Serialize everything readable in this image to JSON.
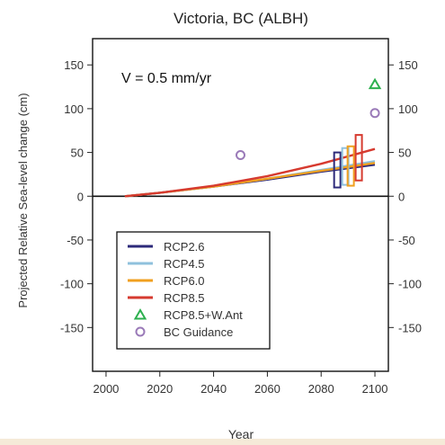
{
  "chart_data": {
    "type": "line",
    "title": "Victoria, BC (ALBH)",
    "xlabel": "Year",
    "ylabel": "Projected Relative Sea-level change (cm)",
    "annotation": "V = 0.5 mm/yr",
    "xlim": [
      1995,
      2105
    ],
    "ylim": [
      -200,
      180
    ],
    "xticks": [
      "2000",
      "2020",
      "2040",
      "2060",
      "2080",
      "2100"
    ],
    "xtick_values": [
      2000,
      2020,
      2040,
      2060,
      2080,
      2100
    ],
    "yticks": [
      "150",
      "100",
      "50",
      "0",
      "-50",
      "-100",
      "-150"
    ],
    "ytick_values": [
      150,
      100,
      50,
      0,
      -50,
      -100,
      -150
    ],
    "legend_position": "lower-left",
    "zero_line": true,
    "series": [
      {
        "name": "RCP2.6",
        "color": "#2d2a7a",
        "x": [
          2007,
          2020,
          2040,
          2060,
          2080,
          2100
        ],
        "y": [
          0,
          4,
          11,
          19,
          28,
          36
        ],
        "range": {
          "x": 2086,
          "low": 10,
          "high": 50
        }
      },
      {
        "name": "RCP4.5",
        "color": "#8fc1dd",
        "x": [
          2007,
          2020,
          2040,
          2060,
          2080,
          2100
        ],
        "y": [
          0,
          4,
          11,
          20,
          30,
          40
        ],
        "range": {
          "x": 2089,
          "low": 13,
          "high": 55
        }
      },
      {
        "name": "RCP6.0",
        "color": "#f0a020",
        "x": [
          2007,
          2020,
          2040,
          2060,
          2080,
          2100
        ],
        "y": [
          0,
          4,
          11,
          20,
          29,
          38
        ],
        "range": {
          "x": 2091,
          "low": 12,
          "high": 57
        }
      },
      {
        "name": "RCP8.5",
        "color": "#d63a2f",
        "x": [
          2007,
          2020,
          2040,
          2060,
          2080,
          2100
        ],
        "y": [
          0,
          4,
          12,
          23,
          37,
          54
        ],
        "range": {
          "x": 2094,
          "low": 18,
          "high": 70
        }
      }
    ],
    "markers": [
      {
        "name": "RCP8.5+W.Ant",
        "shape": "triangle",
        "color": "#2db04f",
        "x": [
          2100
        ],
        "y": [
          128
        ]
      },
      {
        "name": "BC Guidance",
        "shape": "circle",
        "color": "#9a7ab8",
        "x": [
          2050,
          2100
        ],
        "y": [
          47,
          95
        ]
      }
    ]
  }
}
